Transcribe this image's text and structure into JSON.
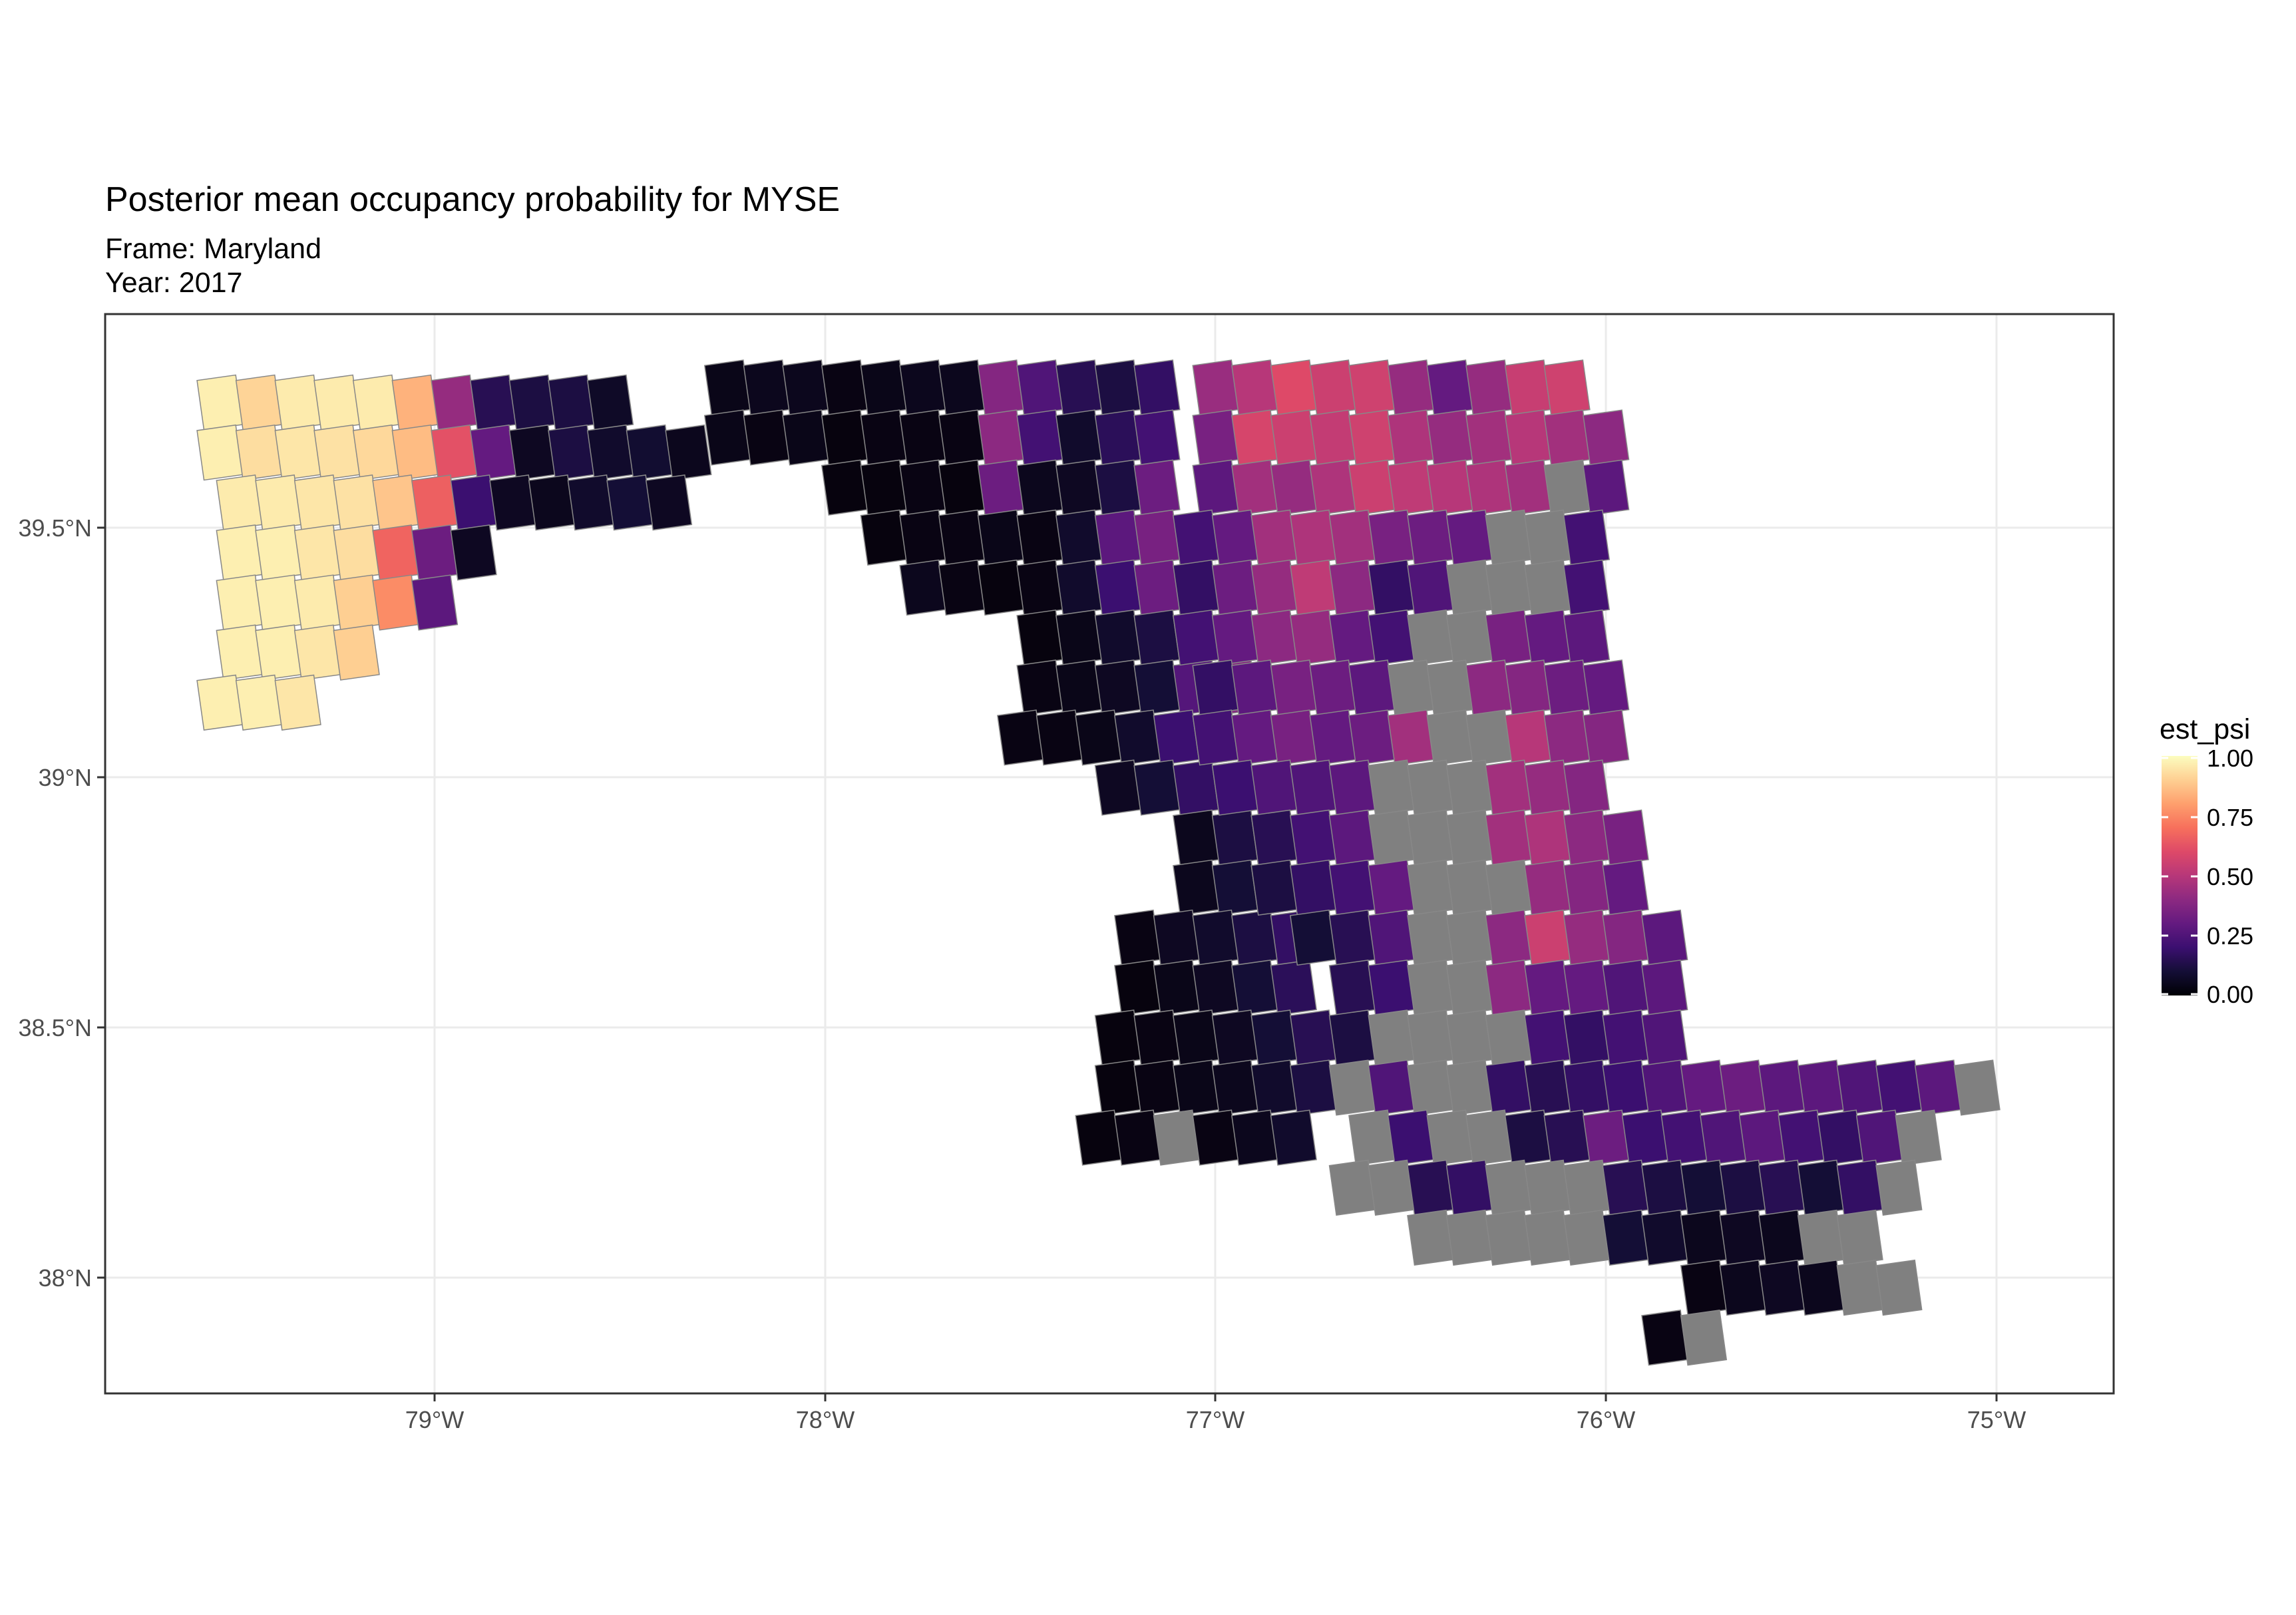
{
  "chart": {
    "title": "Posterior mean occupancy probability for MYSE",
    "subtitle_frame": "Frame: Maryland",
    "subtitle_year": "Year: 2017"
  },
  "legend": {
    "title": "est_psi",
    "labels": [
      "1.00",
      "0.75",
      "0.50",
      "0.25",
      "0.00"
    ]
  },
  "axes": {
    "x_ticks": [
      "79°W",
      "78°W",
      "77°W",
      "76°W",
      "75°W"
    ],
    "y_ticks": [
      "39.5°N",
      "39°N",
      "38.5°N",
      "38°N"
    ]
  },
  "colors": {
    "na_fill": "#808080",
    "grid": "#ebebeb",
    "panel_border": "#333333",
    "cell_border": "#888888"
  },
  "chart_data": {
    "type": "heatmap",
    "value_name": "est_psi",
    "scale": [
      0,
      1
    ],
    "palette": "magma",
    "xlim": [
      -79.85,
      -74.7
    ],
    "ylim": [
      37.77,
      39.92
    ],
    "na_value_color": "#808080",
    "grid_note": "cells given by lon/lat grid indices, 0.1° spacing; value null = NA",
    "cells": [
      {
        "lon": -79.5,
        "lat": 39.75,
        "v": 0.97
      },
      {
        "lon": -79.4,
        "lat": 39.75,
        "v": 0.91
      },
      {
        "lon": -79.3,
        "lat": 39.75,
        "v": 0.96
      },
      {
        "lon": -79.2,
        "lat": 39.75,
        "v": 0.96
      },
      {
        "lon": -79.1,
        "lat": 39.75,
        "v": 0.96
      },
      {
        "lon": -78.97,
        "lat": 39.78,
        "v": 0.84
      },
      {
        "lon": -78.85,
        "lat": 39.75,
        "v": 0.42
      },
      {
        "lon": -78.75,
        "lat": 39.73,
        "v": 0.15
      },
      {
        "lon": -78.65,
        "lat": 39.72,
        "v": 0.12
      },
      {
        "lon": -78.55,
        "lat": 39.7,
        "v": 0.12
      },
      {
        "lon": -78.45,
        "lat": 39.68,
        "v": 0.07
      },
      {
        "lon": -78.27,
        "lat": 39.77,
        "v": 0.04
      },
      {
        "lon": -78.17,
        "lat": 39.75,
        "v": 0.05
      },
      {
        "lon": -78.07,
        "lat": 39.73,
        "v": 0.05
      },
      {
        "lon": -77.97,
        "lat": 39.71,
        "v": 0.03
      },
      {
        "lon": -77.87,
        "lat": 39.69,
        "v": 0.04
      },
      {
        "lon": -77.67,
        "lat": 39.78,
        "v": 0.05
      },
      {
        "lon": -77.57,
        "lat": 39.75,
        "v": 0.38
      },
      {
        "lon": -77.47,
        "lat": 39.73,
        "v": 0.25
      },
      {
        "lon": -77.37,
        "lat": 39.72,
        "v": 0.15
      },
      {
        "lon": -77.27,
        "lat": 39.7,
        "v": 0.12
      },
      {
        "lon": -77.17,
        "lat": 39.68,
        "v": 0.18
      },
      {
        "lon": -77.0,
        "lat": 39.78,
        "v": 0.43
      },
      {
        "lon": -76.9,
        "lat": 39.76,
        "v": 0.5
      },
      {
        "lon": -76.8,
        "lat": 39.75,
        "v": 0.6
      },
      {
        "lon": -76.7,
        "lat": 39.73,
        "v": 0.55
      },
      {
        "lon": -76.6,
        "lat": 39.71,
        "v": 0.56
      },
      {
        "lon": -76.45,
        "lat": 39.78,
        "v": 0.42
      },
      {
        "lon": -76.35,
        "lat": 39.76,
        "v": 0.3
      },
      {
        "lon": -76.25,
        "lat": 39.74,
        "v": 0.42
      },
      {
        "lon": -76.15,
        "lat": 39.72,
        "v": 0.54
      },
      {
        "lon": -76.05,
        "lat": 39.7,
        "v": 0.56
      },
      {
        "lon": -75.95,
        "lat": 39.8,
        "v": 0.6
      }
    ]
  }
}
